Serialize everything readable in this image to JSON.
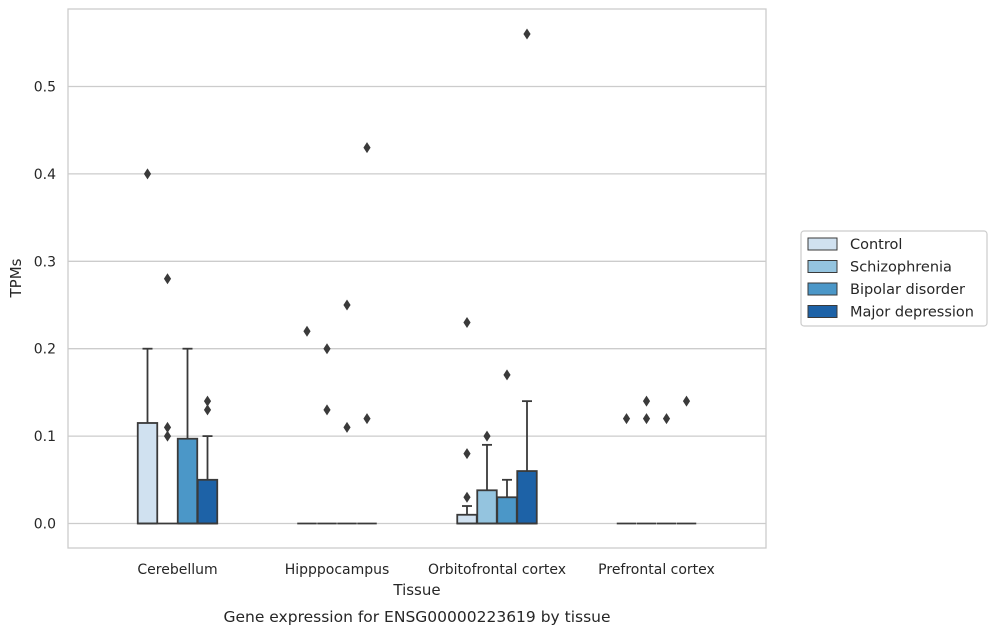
{
  "caption": "Gene expression for ENSG00000223619 by tissue",
  "legend_colors": [
    "#d0e1f0",
    "#94c4df",
    "#4b97c8",
    "#1d62a7"
  ],
  "chart_data": {
    "type": "box",
    "xlabel": "Tissue",
    "ylabel": "TPMs",
    "categories": [
      "Cerebellum",
      "Hipppocampus",
      "Orbitofrontal cortex",
      "Prefrontal cortex"
    ],
    "ylim": [
      -0.028,
      0.588
    ],
    "yticks": [
      "0.0",
      "0.1",
      "0.2",
      "0.3",
      "0.4",
      "0.5"
    ],
    "grid": "horizontal",
    "legend_position": "right",
    "series": [
      {
        "name": "Control",
        "boxes": [
          {
            "q1": 0.0,
            "median": 0.0,
            "q3": 0.115,
            "whisker_low": 0.0,
            "whisker_high": 0.2,
            "outliers": [
              0.4
            ]
          },
          {
            "q1": 0.0,
            "median": 0.0,
            "q3": 0.0,
            "whisker_low": 0.0,
            "whisker_high": 0.0,
            "outliers": [
              0.22
            ]
          },
          {
            "q1": 0.0,
            "median": 0.0,
            "q3": 0.01,
            "whisker_low": 0.0,
            "whisker_high": 0.02,
            "outliers": [
              0.23,
              0.08,
              0.03
            ]
          },
          {
            "q1": 0.0,
            "median": 0.0,
            "q3": 0.0,
            "whisker_low": 0.0,
            "whisker_high": 0.0,
            "outliers": [
              0.12
            ]
          }
        ]
      },
      {
        "name": "Schizophrenia",
        "boxes": [
          {
            "q1": 0.0,
            "median": 0.0,
            "q3": 0.0,
            "whisker_low": 0.0,
            "whisker_high": 0.0,
            "outliers": [
              0.28,
              0.11,
              0.1
            ]
          },
          {
            "q1": 0.0,
            "median": 0.0,
            "q3": 0.0,
            "whisker_low": 0.0,
            "whisker_high": 0.0,
            "outliers": [
              0.2,
              0.13
            ]
          },
          {
            "q1": 0.0,
            "median": 0.0,
            "q3": 0.038,
            "whisker_low": 0.0,
            "whisker_high": 0.09,
            "outliers": [
              0.1
            ]
          },
          {
            "q1": 0.0,
            "median": 0.0,
            "q3": 0.0,
            "whisker_low": 0.0,
            "whisker_high": 0.0,
            "outliers": [
              0.14,
              0.12
            ]
          }
        ]
      },
      {
        "name": "Bipolar disorder",
        "boxes": [
          {
            "q1": 0.0,
            "median": 0.0,
            "q3": 0.097,
            "whisker_low": 0.0,
            "whisker_high": 0.2,
            "outliers": []
          },
          {
            "q1": 0.0,
            "median": 0.0,
            "q3": 0.0,
            "whisker_low": 0.0,
            "whisker_high": 0.0,
            "outliers": [
              0.25,
              0.11
            ]
          },
          {
            "q1": 0.0,
            "median": 0.0,
            "q3": 0.03,
            "whisker_low": 0.0,
            "whisker_high": 0.05,
            "outliers": [
              0.17
            ]
          },
          {
            "q1": 0.0,
            "median": 0.0,
            "q3": 0.0,
            "whisker_low": 0.0,
            "whisker_high": 0.0,
            "outliers": [
              0.12
            ]
          }
        ]
      },
      {
        "name": "Major depression",
        "boxes": [
          {
            "q1": 0.0,
            "median": 0.0,
            "q3": 0.05,
            "whisker_low": 0.0,
            "whisker_high": 0.1,
            "outliers": [
              0.14,
              0.13
            ]
          },
          {
            "q1": 0.0,
            "median": 0.0,
            "q3": 0.0,
            "whisker_low": 0.0,
            "whisker_high": 0.0,
            "outliers": [
              0.43,
              0.12
            ]
          },
          {
            "q1": 0.0,
            "median": 0.0,
            "q3": 0.06,
            "whisker_low": 0.0,
            "whisker_high": 0.14,
            "outliers": [
              0.56
            ]
          },
          {
            "q1": 0.0,
            "median": 0.0,
            "q3": 0.0,
            "whisker_low": 0.0,
            "whisker_high": 0.0,
            "outliers": [
              0.14
            ]
          }
        ]
      }
    ]
  }
}
